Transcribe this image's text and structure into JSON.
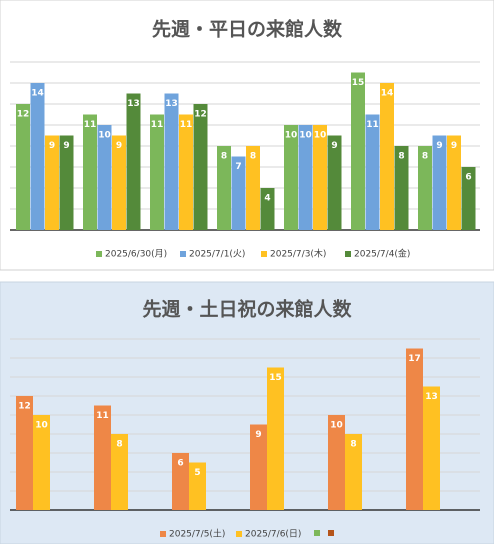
{
  "chart_data": [
    {
      "type": "bar",
      "title": "先週・平日の来館人数",
      "categories": [
        null,
        null,
        null,
        null,
        null,
        null,
        null
      ],
      "series": [
        {
          "name": "2025/6/30(月)",
          "color": "#7cb75a",
          "values": [
            12,
            11,
            11,
            8,
            10,
            15,
            8
          ]
        },
        {
          "name": "2025/7/1(火)",
          "color": "#6fa3dc",
          "values": [
            14,
            10,
            13,
            7,
            10,
            11,
            9
          ]
        },
        {
          "name": "2025/7/3(木)",
          "color": "#ffc122",
          "values": [
            9,
            9,
            11,
            8,
            10,
            14,
            9
          ]
        },
        {
          "name": "2025/7/4(金)",
          "color": "#548a3a",
          "values": [
            9,
            13,
            12,
            4,
            9,
            8,
            6
          ]
        }
      ],
      "ylim": [
        0,
        16
      ],
      "yticks": [
        0,
        2,
        4,
        6,
        8,
        10,
        12,
        14,
        16
      ],
      "grid": true,
      "legend": "bottom"
    },
    {
      "type": "bar",
      "title": "先週・土日祝の来館人数",
      "categories": [
        null,
        null,
        null,
        null,
        null,
        null
      ],
      "series": [
        {
          "name": "2025/7/5(土)",
          "color": "#ee8747",
          "values": [
            12,
            11,
            6,
            9,
            10,
            17
          ]
        },
        {
          "name": "2025/7/6(日)",
          "color": "#ffc122",
          "values": [
            10,
            8,
            5,
            15,
            8,
            13
          ]
        }
      ],
      "ylim": [
        0,
        18
      ],
      "yticks": [
        0,
        2,
        4,
        6,
        8,
        10,
        12,
        14,
        16,
        18
      ],
      "grid": true,
      "legend": "bottom"
    }
  ]
}
